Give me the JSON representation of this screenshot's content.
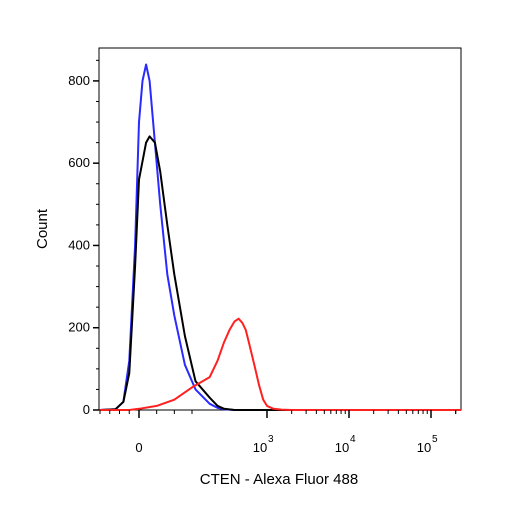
{
  "chart_data": {
    "type": "line",
    "title": "",
    "xlabel": "CTEN - Alexa Fluor 488",
    "ylabel": "Count",
    "x_scale": "biexponential",
    "xlim": [
      -200,
      250000
    ],
    "ylim": [
      0,
      880
    ],
    "grid": false,
    "legend": "none",
    "y_ticks": [
      0,
      200,
      400,
      600,
      800
    ],
    "y_tick_labels": [
      "0",
      "200",
      "400",
      "600",
      "800"
    ],
    "x_ticks": [
      0,
      1000,
      10000,
      100000
    ],
    "x_tick_labels": [
      {
        "base": "0",
        "exp": ""
      },
      {
        "base": "10",
        "exp": "3"
      },
      {
        "base": "10",
        "exp": "4"
      },
      {
        "base": "10",
        "exp": "5"
      }
    ],
    "series": [
      {
        "color": "#2a2aff",
        "x": [
          -200,
          -120,
          -80,
          -50,
          -20,
          0,
          10,
          20,
          30,
          45,
          60,
          80,
          100,
          130,
          160,
          200,
          250,
          300,
          400,
          600,
          1000,
          10000,
          100000,
          250000
        ],
        "y": [
          0,
          2,
          20,
          120,
          400,
          700,
          800,
          840,
          800,
          650,
          500,
          330,
          230,
          110,
          50,
          15,
          5,
          2,
          0,
          0,
          0,
          0,
          0,
          0
        ]
      },
      {
        "color": "#000000",
        "x": [
          -200,
          -120,
          -80,
          -50,
          -20,
          0,
          20,
          30,
          45,
          60,
          80,
          100,
          130,
          160,
          200,
          250,
          300,
          400,
          600,
          1000,
          10000,
          100000,
          250000
        ],
        "y": [
          0,
          2,
          20,
          90,
          350,
          560,
          650,
          665,
          650,
          580,
          450,
          330,
          180,
          70,
          30,
          10,
          3,
          0,
          0,
          0,
          0,
          0,
          0
        ]
      },
      {
        "color": "#ff2020",
        "x": [
          -200,
          -50,
          0,
          50,
          100,
          150,
          200,
          250,
          300,
          350,
          400,
          450,
          500,
          550,
          600,
          700,
          800,
          900,
          1000,
          1200,
          1500,
          2000,
          10000,
          100000,
          250000
        ],
        "y": [
          0,
          0,
          3,
          10,
          25,
          55,
          80,
          120,
          165,
          195,
          215,
          222,
          212,
          195,
          165,
          110,
          60,
          25,
          10,
          3,
          1,
          0,
          0,
          0,
          0
        ]
      }
    ]
  }
}
